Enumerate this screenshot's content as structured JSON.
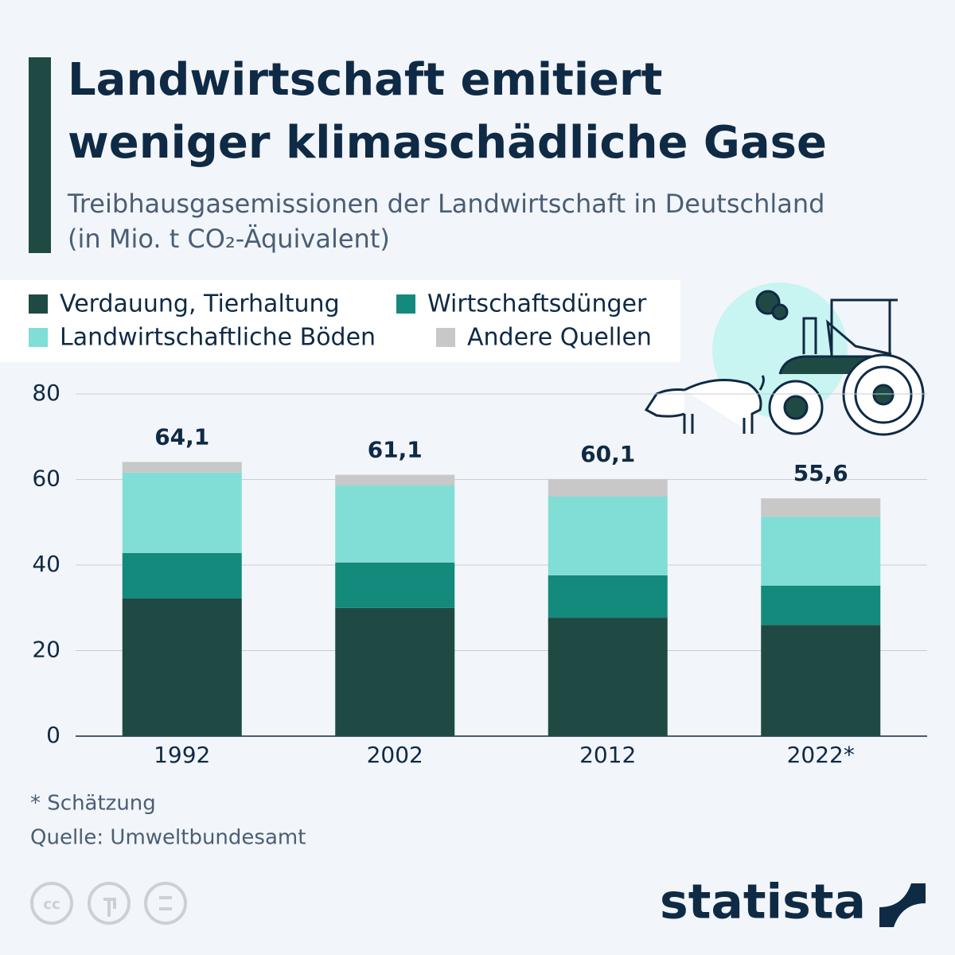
{
  "chart_data": {
    "type": "stacked_bar",
    "title": [
      "Landwirtschaft emitiert",
      "weniger klimaschädliche Gase"
    ],
    "subtitle": [
      "Treibhausgasemissionen der Landwirtschaft in Deutschland",
      "(in Mio. t CO₂-Äquivalent)"
    ],
    "categories": [
      "1992",
      "2002",
      "2012",
      "2022*"
    ],
    "series": [
      {
        "name": "Verdauung, Tierhaltung",
        "color": "#1f4a44",
        "values": [
          32.2,
          30.0,
          27.7,
          26.0
        ]
      },
      {
        "name": "Wirtschaftsdünger",
        "color": "#138a7b",
        "values": [
          10.6,
          10.6,
          9.9,
          9.2
        ]
      },
      {
        "name": "Landwirtschaftliche Böden",
        "color": "#80ded6",
        "values": [
          18.8,
          18.0,
          18.4,
          16.1
        ]
      },
      {
        "name": "Andere Quellen",
        "color": "#c8c8c8",
        "values": [
          2.5,
          2.5,
          4.1,
          4.3
        ]
      }
    ],
    "totals": {
      "values": [
        64.1,
        61.1,
        60.1,
        55.6
      ],
      "value_labels": [
        "64,1",
        "61,1",
        "60,1",
        "55,6"
      ]
    },
    "ylim": [
      0,
      80
    ],
    "yticks": [
      0,
      20,
      40,
      60,
      80
    ],
    "grid": true,
    "footnote": "* Schätzung",
    "source": "Quelle: Umweltbundesamt",
    "brand": "statista"
  }
}
